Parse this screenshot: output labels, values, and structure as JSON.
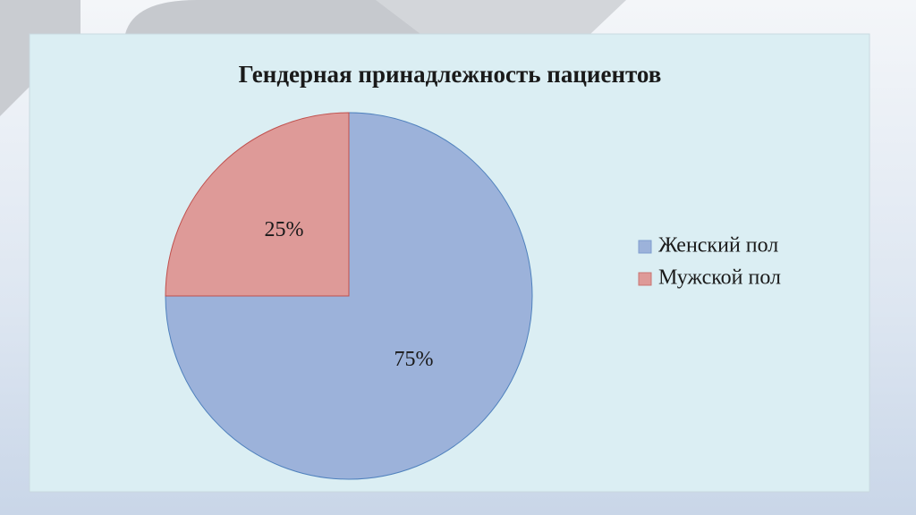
{
  "chart_data": {
    "type": "pie",
    "title": "Гендерная принадлежность пациентов",
    "categories": [
      "Женский пол",
      "Мужской пол"
    ],
    "values": [
      75,
      25
    ],
    "value_labels": [
      "75%",
      "25%"
    ],
    "colors": [
      "#9cb2da",
      "#de9a98"
    ],
    "legend": "right"
  }
}
